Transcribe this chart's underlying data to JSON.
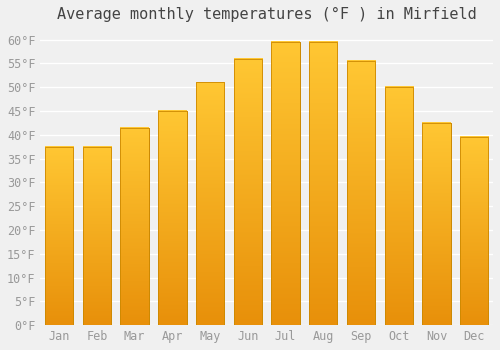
{
  "title": "Average monthly temperatures (°F ) in Mirfield",
  "months": [
    "Jan",
    "Feb",
    "Mar",
    "Apr",
    "May",
    "Jun",
    "Jul",
    "Aug",
    "Sep",
    "Oct",
    "Nov",
    "Dec"
  ],
  "values": [
    37.5,
    37.5,
    41.5,
    45,
    51,
    56,
    59.5,
    59.5,
    55.5,
    50,
    42.5,
    39.5
  ],
  "bar_color_top": "#FFC733",
  "bar_color_bottom": "#E8900A",
  "bar_edge_color": "#CC8800",
  "ylim": [
    0,
    62
  ],
  "yticks": [
    0,
    5,
    10,
    15,
    20,
    25,
    30,
    35,
    40,
    45,
    50,
    55,
    60
  ],
  "background_color": "#f0f0f0",
  "plot_bg_color": "#f0f0f0",
  "grid_color": "#ffffff",
  "title_fontsize": 11,
  "tick_fontsize": 8.5,
  "tick_color": "#999999",
  "title_color": "#444444"
}
